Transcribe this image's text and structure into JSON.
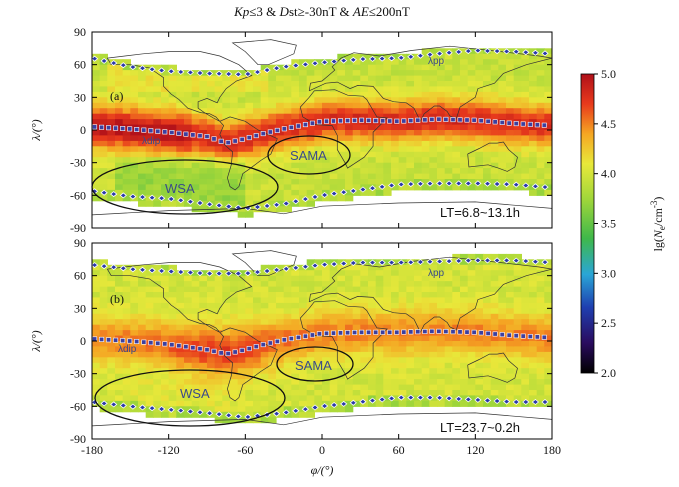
{
  "figure": {
    "title": "Kp≤3 & Dst≥-30nT & AE≤200nT",
    "title_parts": [
      "Kp",
      "≤3 & ",
      "D",
      "st≥-30nT & ",
      "AE",
      "≤200nT"
    ],
    "x_axis_label": "φ/(°)",
    "y_axis_label": "λ/(°)",
    "colorbar_label": "lg(Ne/cm⁻³)",
    "colorbar_label_parts": [
      "lg(",
      "N",
      "e",
      "/cm",
      "-3",
      ")"
    ],
    "panels": [
      {
        "tag": "(a)",
        "lt_label": "LT=6.8~13.1h",
        "lambda_pp_label": "λpp",
        "lambda_dip_label": "λdip",
        "region_labels": {
          "wsa": "WSA",
          "sama": "SAMA"
        }
      },
      {
        "tag": "(b)",
        "lt_label": "LT=23.7~0.2h",
        "lambda_pp_label": "λpp",
        "lambda_dip_label": "λdip",
        "region_labels": {
          "wsa": "WSA",
          "sama": "SAMA"
        }
      }
    ]
  },
  "chart_data": {
    "type": "heatmap",
    "title": "Kp≤3 & Dst≥-30nT & AE≤200nT",
    "xlabel": "φ/(°)",
    "ylabel": "λ/(°)",
    "xlim": [
      -180,
      180
    ],
    "ylim": [
      -90,
      90
    ],
    "x_ticks": [
      -180,
      -120,
      -60,
      0,
      60,
      120,
      180
    ],
    "y_ticks": [
      90,
      60,
      30,
      0,
      -30,
      -60,
      -90
    ],
    "colorbar": {
      "label": "lg(Ne/cm⁻³)",
      "range": [
        2.0,
        5.0
      ],
      "ticks": [
        2.0,
        2.5,
        3.0,
        3.5,
        4.0,
        4.5,
        5.0
      ],
      "colormap": [
        "#000000",
        "#2a0b5e",
        "#1f3fb0",
        "#2aa6d6",
        "#3fb84a",
        "#9fd63a",
        "#e8e83a",
        "#f5a623",
        "#e83a1c",
        "#b0101a"
      ]
    },
    "panels": [
      {
        "tag": "(a)",
        "local_time": "LT=6.8~13.1h",
        "dip_equator_lat": [
          [
            -180,
            3
          ],
          [
            -150,
            1
          ],
          [
            -120,
            -2
          ],
          [
            -90,
            -6
          ],
          [
            -75,
            -12
          ],
          [
            -60,
            -8
          ],
          [
            -45,
            -3
          ],
          [
            -30,
            1
          ],
          [
            0,
            8
          ],
          [
            30,
            9
          ],
          [
            60,
            8
          ],
          [
            90,
            10
          ],
          [
            120,
            9
          ],
          [
            150,
            6
          ],
          [
            180,
            4
          ]
        ],
        "plasmapause_north_lat": [
          [
            -180,
            66
          ],
          [
            -150,
            58
          ],
          [
            -120,
            54
          ],
          [
            -90,
            52
          ],
          [
            -60,
            51
          ],
          [
            -30,
            58
          ],
          [
            0,
            62
          ],
          [
            30,
            65
          ],
          [
            60,
            66
          ],
          [
            90,
            70
          ],
          [
            120,
            73
          ],
          [
            150,
            72
          ],
          [
            180,
            70
          ]
        ],
        "plasmapause_south_lat": [
          [
            -180,
            -56
          ],
          [
            -150,
            -61
          ],
          [
            -120,
            -63
          ],
          [
            -90,
            -68
          ],
          [
            -60,
            -72
          ],
          [
            -30,
            -68
          ],
          [
            0,
            -60
          ],
          [
            30,
            -55
          ],
          [
            60,
            -50
          ],
          [
            90,
            -49
          ],
          [
            120,
            -49
          ],
          [
            150,
            -50
          ],
          [
            180,
            -53
          ]
        ],
        "enhancement": "high densities (lg Ne ≈ 4.5–5.0) near ±15° of the dip equator; ≈ 3.5–4.0 at mid/high latitudes",
        "regions": [
          {
            "name": "WSA",
            "center": [
              -115,
              -45
            ]
          },
          {
            "name": "SAMA",
            "center": [
              -15,
              -20
            ]
          }
        ]
      },
      {
        "tag": "(b)",
        "local_time": "LT=23.7~0.2h",
        "dip_equator_lat": [
          [
            -180,
            2
          ],
          [
            -150,
            0
          ],
          [
            -120,
            -3
          ],
          [
            -90,
            -8
          ],
          [
            -75,
            -12
          ],
          [
            -60,
            -8
          ],
          [
            -45,
            -3
          ],
          [
            -30,
            1
          ],
          [
            0,
            7
          ],
          [
            30,
            8
          ],
          [
            60,
            8
          ],
          [
            90,
            9
          ],
          [
            120,
            8
          ],
          [
            150,
            5
          ],
          [
            180,
            3
          ]
        ],
        "plasmapause_north_lat": [
          [
            -180,
            70
          ],
          [
            -150,
            66
          ],
          [
            -120,
            64
          ],
          [
            -90,
            62
          ],
          [
            -60,
            62
          ],
          [
            -30,
            66
          ],
          [
            0,
            70
          ],
          [
            30,
            72
          ],
          [
            60,
            72
          ],
          [
            90,
            73
          ],
          [
            120,
            74
          ],
          [
            150,
            74
          ],
          [
            180,
            72
          ]
        ],
        "plasmapause_south_lat": [
          [
            -180,
            -56
          ],
          [
            -150,
            -60
          ],
          [
            -120,
            -63
          ],
          [
            -90,
            -66
          ],
          [
            -60,
            -70
          ],
          [
            -30,
            -66
          ],
          [
            0,
            -60
          ],
          [
            30,
            -56
          ],
          [
            60,
            -52
          ],
          [
            90,
            -52
          ],
          [
            120,
            -54
          ],
          [
            150,
            -56
          ],
          [
            180,
            -56
          ]
        ],
        "enhancement": "moderate densities (lg Ne ≈ 4.0–4.5) along the dip equator and SE Pacific; lower ≈ 3.8–4.0 elsewhere",
        "regions": [
          {
            "name": "WSA",
            "center": [
              -120,
              -50
            ]
          },
          {
            "name": "SAMA",
            "center": [
              -10,
              -20
            ]
          }
        ]
      }
    ]
  }
}
